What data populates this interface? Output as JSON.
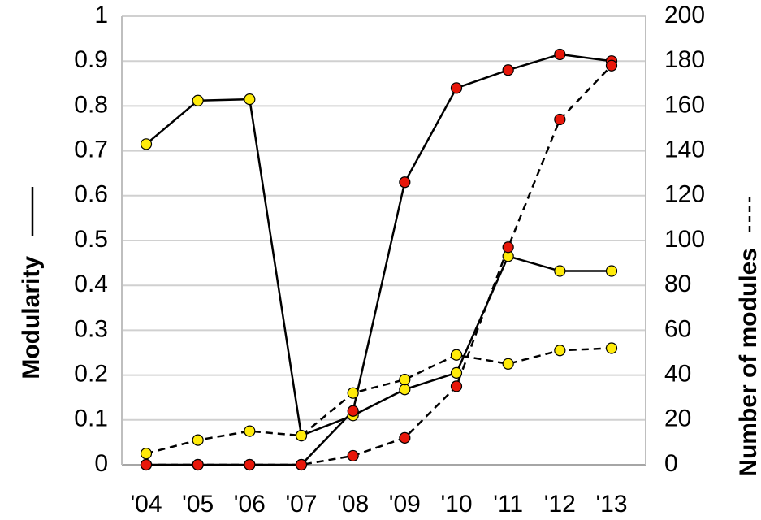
{
  "chart_data": {
    "type": "line",
    "categories": [
      "'04",
      "'05",
      "'06",
      "'07",
      "'08",
      "'09",
      "'10",
      "'11",
      "'12",
      "'13"
    ],
    "left_axis": {
      "label": "Modularity",
      "ylim": [
        0,
        1
      ],
      "ticks": [
        "0",
        "0.1",
        "0.2",
        "0.3",
        "0.4",
        "0.5",
        "0.6",
        "0.7",
        "0.8",
        "0.9",
        "1"
      ]
    },
    "right_axis": {
      "label": "Number of modules",
      "ylim": [
        0,
        200
      ],
      "ticks": [
        "0",
        "20",
        "40",
        "60",
        "80",
        "100",
        "120",
        "140",
        "160",
        "180",
        "200"
      ]
    },
    "grid": true,
    "series": [
      {
        "axis": "left",
        "line_style": "solid",
        "marker_color": "#FFEB0A",
        "values": [
          0.715,
          0.812,
          0.815,
          0.065,
          0.11,
          0.168,
          0.205,
          0.465,
          0.432,
          0.432
        ]
      },
      {
        "axis": "left",
        "line_style": "solid",
        "marker_color": "#E8170A",
        "values": [
          0.0,
          0.0,
          0.0,
          0.0,
          0.12,
          0.63,
          0.84,
          0.88,
          0.915,
          0.9
        ]
      },
      {
        "axis": "right",
        "line_style": "dashed",
        "marker_color": "#FFEB0A",
        "values": [
          5,
          11,
          15,
          13,
          32,
          38,
          49,
          45,
          51,
          52
        ]
      },
      {
        "axis": "right",
        "line_style": "dashed",
        "marker_color": "#E8170A",
        "values": [
          0,
          0,
          0,
          0,
          4,
          12,
          35,
          97,
          154,
          178
        ]
      }
    ]
  }
}
